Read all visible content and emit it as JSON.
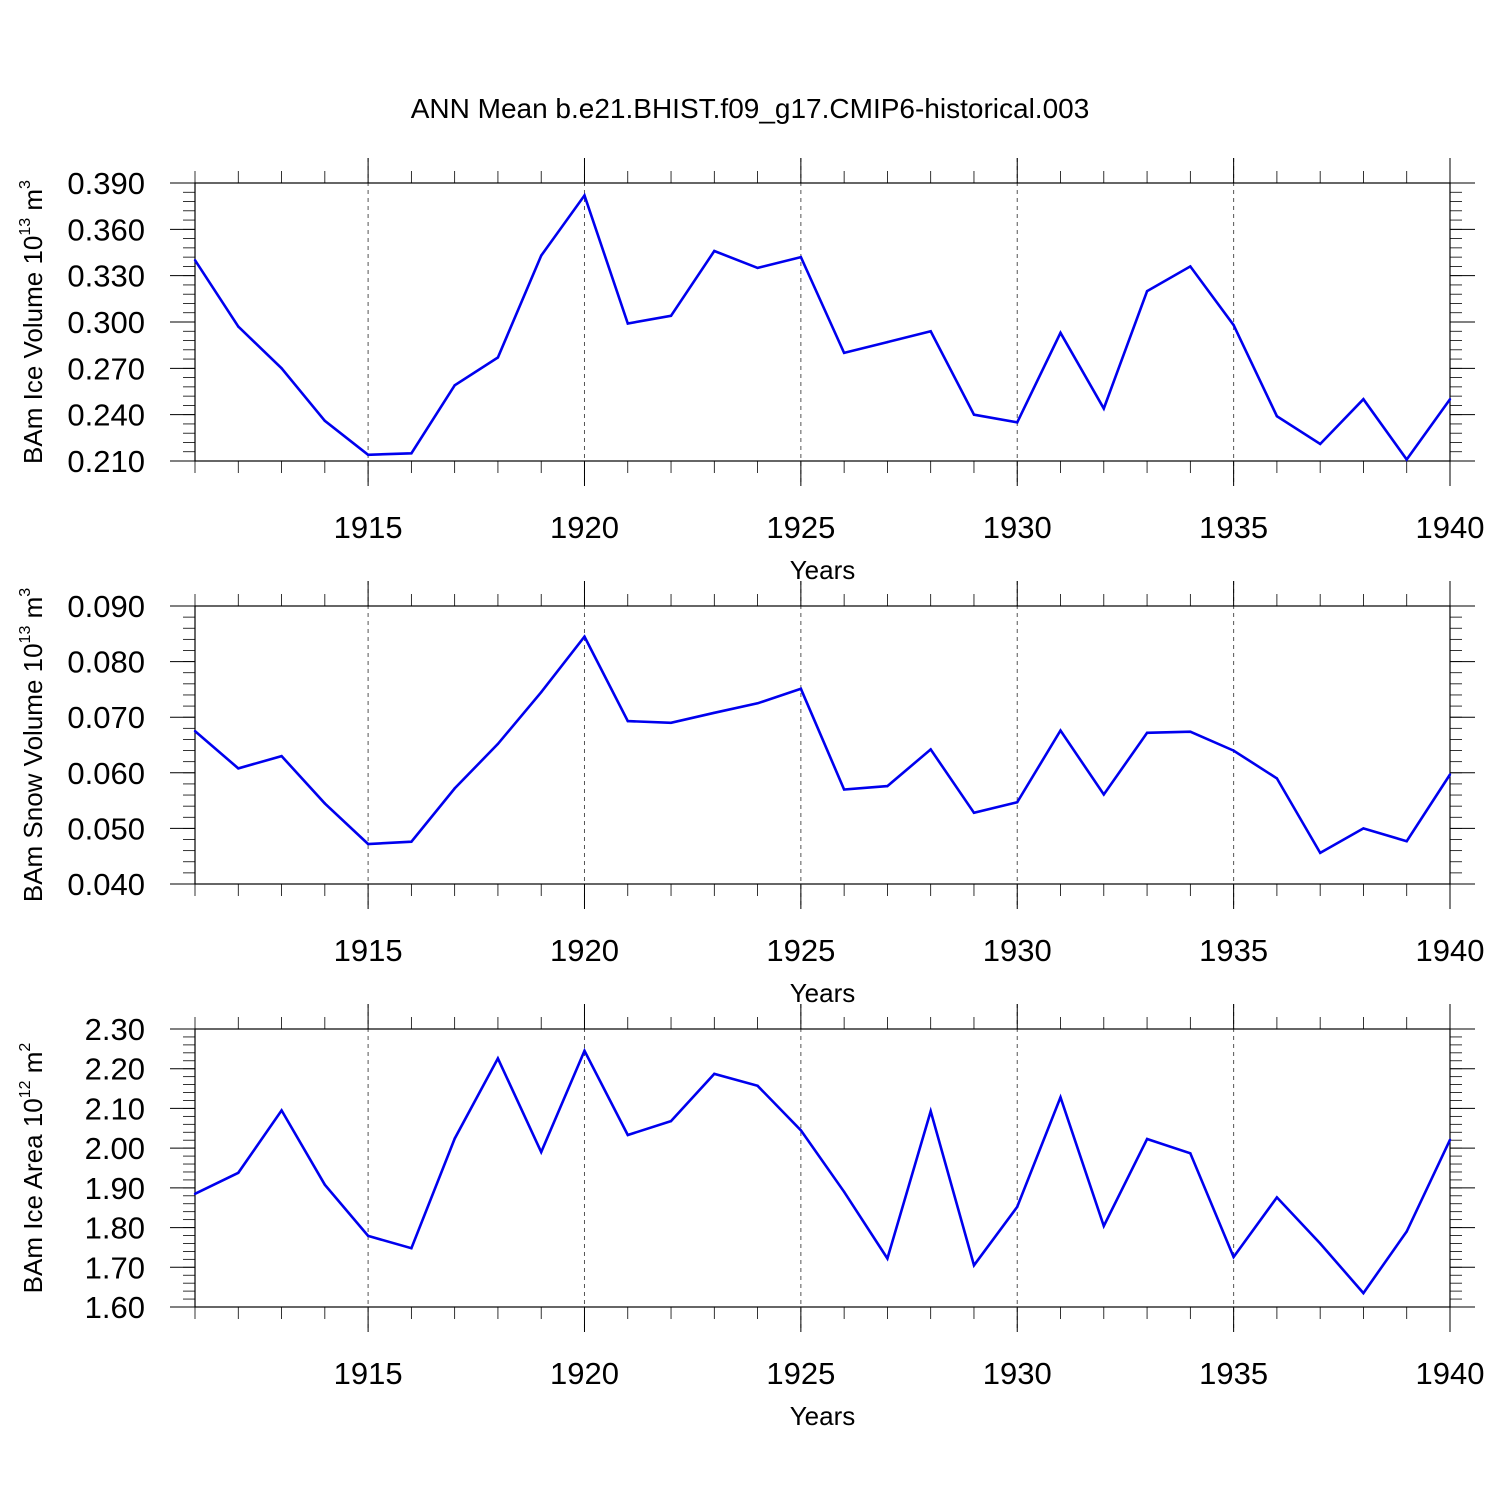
{
  "figure_title": "ANN Mean b.e21.BHIST.f09_g17.CMIP6-historical.003",
  "chart_data": [
    {
      "type": "line",
      "ylabel_main": "BAm Ice Volume 10",
      "ylabel_exp": "13",
      "ylabel_unit": " m",
      "ylabel_unit_exp": "3",
      "xlabel": "Years",
      "xlim": [
        1911,
        1940
      ],
      "ylim": [
        0.21,
        0.39
      ],
      "yticks": [
        "0.390",
        "0.360",
        "0.330",
        "0.300",
        "0.270",
        "0.240",
        "0.210"
      ],
      "xticks": [
        "1915",
        "1920",
        "1925",
        "1930",
        "1935",
        "1940"
      ],
      "line_color": "#0000ee",
      "x": [
        1911,
        1912,
        1913,
        1914,
        1915,
        1916,
        1917,
        1918,
        1919,
        1920,
        1921,
        1922,
        1923,
        1924,
        1925,
        1926,
        1927,
        1928,
        1929,
        1930,
        1931,
        1932,
        1933,
        1934,
        1935,
        1936,
        1937,
        1938,
        1939,
        1940
      ],
      "values": [
        0.34,
        0.297,
        0.27,
        0.236,
        0.214,
        0.215,
        0.259,
        0.277,
        0.343,
        0.382,
        0.299,
        0.304,
        0.346,
        0.335,
        0.342,
        0.28,
        0.287,
        0.294,
        0.24,
        0.235,
        0.293,
        0.244,
        0.32,
        0.336,
        0.298,
        0.239,
        0.221,
        0.25,
        0.211,
        0.25
      ]
    },
    {
      "type": "line",
      "ylabel_main": "BAm Snow Volume 10",
      "ylabel_exp": "13",
      "ylabel_unit": " m",
      "ylabel_unit_exp": "3",
      "xlabel": "Years",
      "xlim": [
        1911,
        1940
      ],
      "ylim": [
        0.04,
        0.09
      ],
      "yticks": [
        "0.090",
        "0.080",
        "0.070",
        "0.060",
        "0.050",
        "0.040"
      ],
      "xticks": [
        "1915",
        "1920",
        "1925",
        "1930",
        "1935",
        "1940"
      ],
      "line_color": "#0000ee",
      "x": [
        1911,
        1912,
        1913,
        1914,
        1915,
        1916,
        1917,
        1918,
        1919,
        1920,
        1921,
        1922,
        1923,
        1924,
        1925,
        1926,
        1927,
        1928,
        1929,
        1930,
        1931,
        1932,
        1933,
        1934,
        1935,
        1936,
        1937,
        1938,
        1939,
        1940
      ],
      "values": [
        0.0675,
        0.0608,
        0.063,
        0.0545,
        0.0472,
        0.0476,
        0.0572,
        0.0652,
        0.0745,
        0.0845,
        0.0693,
        0.069,
        0.0708,
        0.0725,
        0.0751,
        0.057,
        0.0576,
        0.0642,
        0.0528,
        0.0547,
        0.0676,
        0.0561,
        0.0672,
        0.0674,
        0.064,
        0.059,
        0.0456,
        0.05,
        0.0477,
        0.0597
      ]
    },
    {
      "type": "line",
      "ylabel_main": "BAm Ice Area 10",
      "ylabel_exp": "12",
      "ylabel_unit": " m",
      "ylabel_unit_exp": "2",
      "xlabel": "Years",
      "xlim": [
        1911,
        1940
      ],
      "ylim": [
        1.6,
        2.3
      ],
      "yticks": [
        "2.30",
        "2.20",
        "2.10",
        "2.00",
        "1.90",
        "1.80",
        "1.70",
        "1.60"
      ],
      "xticks": [
        "1915",
        "1920",
        "1925",
        "1930",
        "1935",
        "1940"
      ],
      "line_color": "#0000ee",
      "x": [
        1911,
        1912,
        1913,
        1914,
        1915,
        1916,
        1917,
        1918,
        1919,
        1920,
        1921,
        1922,
        1923,
        1924,
        1925,
        1926,
        1927,
        1928,
        1929,
        1930,
        1931,
        1932,
        1933,
        1934,
        1935,
        1936,
        1937,
        1938,
        1939,
        1940
      ],
      "values": [
        1.885,
        1.938,
        2.095,
        1.908,
        1.779,
        1.748,
        2.024,
        2.226,
        1.99,
        2.245,
        2.033,
        2.068,
        2.187,
        2.157,
        2.045,
        1.89,
        1.722,
        2.093,
        1.705,
        1.852,
        2.128,
        1.804,
        2.023,
        1.987,
        1.726,
        1.876,
        1.76,
        1.635,
        1.79,
        2.021
      ]
    }
  ]
}
